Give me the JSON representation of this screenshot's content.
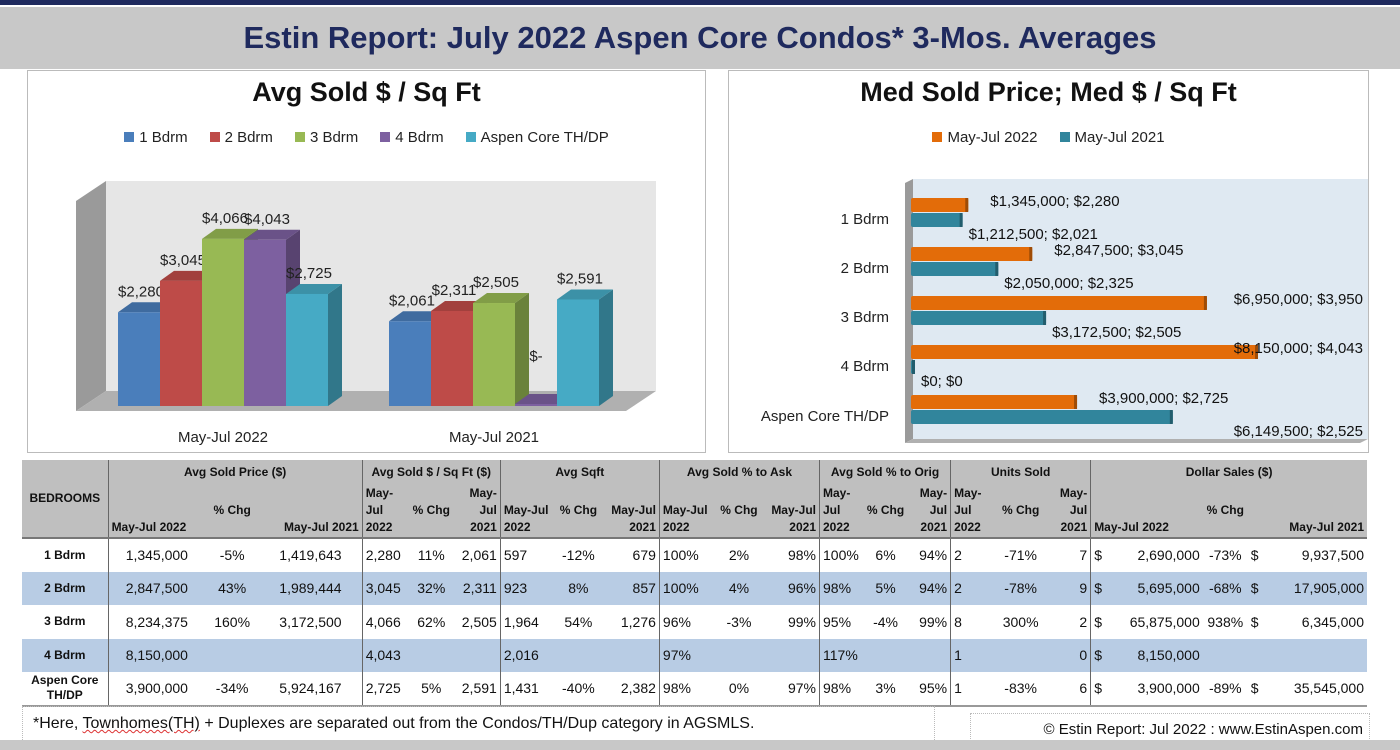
{
  "title": "Estin Report:  July 2022 Aspen Core Condos* 3-Mos. Averages",
  "colors": {
    "title": "#1f2a5e",
    "series": [
      "#4a7ebb",
      "#be4b48",
      "#98b954",
      "#7d60a0",
      "#46aac5"
    ],
    "y2022": "#e36c09",
    "y2021": "#31859c",
    "row_alt": "#b8cce4",
    "header": "#bfbfbf"
  },
  "chart_data": [
    {
      "type": "bar",
      "style": "3d-clustered-column",
      "title": "Avg Sold $ / Sq Ft",
      "categories": [
        "May-Jul 2022",
        "May-Jul 2021"
      ],
      "legend": "top",
      "series": [
        {
          "name": "1 Bdrm",
          "values": [
            2280,
            2061
          ],
          "labels": [
            "$2,280",
            "$2,061"
          ]
        },
        {
          "name": "2 Bdrm",
          "values": [
            3045,
            2311
          ],
          "labels": [
            "$3,045",
            "$2,311"
          ]
        },
        {
          "name": "3 Bdrm",
          "values": [
            4066,
            2505
          ],
          "labels": [
            "$4,066",
            "$2,505"
          ]
        },
        {
          "name": "4 Bdrm",
          "values": [
            4043,
            0
          ],
          "labels": [
            "$4,043",
            "$-"
          ]
        },
        {
          "name": "Aspen Core TH/DP",
          "values": [
            2725,
            2591
          ],
          "labels": [
            "$2,725",
            "$2,591"
          ]
        }
      ],
      "ylim": [
        0,
        4500
      ],
      "grid": false
    },
    {
      "type": "bar",
      "orientation": "horizontal",
      "title": "Med Sold Price; Med $ / Sq Ft",
      "categories": [
        "1 Bdrm",
        "2 Bdrm",
        "3 Bdrm",
        "4 Bdrm",
        "Aspen Core TH/DP"
      ],
      "legend": "top",
      "series": [
        {
          "name": "May-Jul 2022",
          "values": [
            1345000,
            2847500,
            6950000,
            8150000,
            3900000
          ],
          "per_sqft": [
            2280,
            3045,
            3950,
            4043,
            2725
          ],
          "labels": [
            "$1,345,000; $2,280",
            "$2,847,500; $3,045",
            "$6,950,000; $3,950",
            "$8,150,000; $4,043",
            "$3,900,000; $2,725"
          ]
        },
        {
          "name": "May-Jul 2021",
          "values": [
            1212500,
            2050000,
            3172500,
            0,
            6149500
          ],
          "per_sqft": [
            2021,
            2325,
            2505,
            0,
            2525
          ],
          "labels": [
            "$1,212,500; $2,021",
            "$2,050,000; $2,325",
            "$3,172,500; $2,505",
            "$0; $0",
            "$6,149,500; $2,525"
          ]
        }
      ],
      "xlim": [
        0,
        8150000
      ],
      "grid": false
    }
  ],
  "table": {
    "bedrooms_header": "BEDROOMS",
    "groups": [
      "Avg Sold Price ($)",
      "Avg Sold $ / Sq Ft ($)",
      "Avg Sqft",
      "Avg Sold % to Ask",
      "Avg Sold % to Orig",
      "Units Sold",
      "Dollar Sales ($)"
    ],
    "subheaders": [
      [
        "May-Jul 2022",
        "% Chg",
        "May-Jul 2021"
      ],
      [
        "May-\nJul\n2022",
        "% Chg",
        "May-\nJul\n2021"
      ],
      [
        "May-Jul\n2022",
        "% Chg",
        "May-Jul\n2021"
      ],
      [
        "May-Jul\n2022",
        "% Chg",
        "May-Jul\n2021"
      ],
      [
        "May-\nJul\n2022",
        "% Chg",
        "May-\nJul\n2021"
      ],
      [
        "May-\nJul\n2022",
        "% Chg",
        "May-\nJul\n2021"
      ],
      [
        "May-Jul 2022",
        "% Chg",
        "May-Jul 2021"
      ]
    ],
    "rows": [
      {
        "bedroom": "1 Bdrm",
        "cells": [
          "1,345,000",
          "-5%",
          "1,419,643",
          "2,280",
          "11%",
          "2,061",
          "597",
          "-12%",
          "679",
          "100%",
          "2%",
          "98%",
          "100%",
          "6%",
          "94%",
          "2",
          "-71%",
          "7",
          "2,690,000",
          "-73%",
          "9,937,500"
        ]
      },
      {
        "bedroom": "2 Bdrm",
        "cells": [
          "2,847,500",
          "43%",
          "1,989,444",
          "3,045",
          "32%",
          "2,311",
          "923",
          "8%",
          "857",
          "100%",
          "4%",
          "96%",
          "98%",
          "5%",
          "94%",
          "2",
          "-78%",
          "9",
          "5,695,000",
          "-68%",
          "17,905,000"
        ]
      },
      {
        "bedroom": "3 Bdrm",
        "cells": [
          "8,234,375",
          "160%",
          "3,172,500",
          "4,066",
          "62%",
          "2,505",
          "1,964",
          "54%",
          "1,276",
          "96%",
          "-3%",
          "99%",
          "95%",
          "-4%",
          "99%",
          "8",
          "300%",
          "2",
          "65,875,000",
          "938%",
          "6,345,000"
        ]
      },
      {
        "bedroom": "4 Bdrm",
        "cells": [
          "8,150,000",
          "",
          "",
          "4,043",
          "",
          "",
          "2,016",
          "",
          "",
          "97%",
          "",
          "",
          "117%",
          "",
          "",
          "1",
          "",
          "0",
          "8,150,000",
          "",
          ""
        ]
      },
      {
        "bedroom": "Aspen Core\nTH/DP",
        "cells": [
          "3,900,000",
          "-34%",
          "5,924,167",
          "2,725",
          "5%",
          "2,591",
          "1,431",
          "-40%",
          "2,382",
          "98%",
          "0%",
          "97%",
          "98%",
          "3%",
          "95%",
          "1",
          "-83%",
          "6",
          "3,900,000",
          "-89%",
          "35,545,000"
        ]
      }
    ],
    "currency_symbol": "$"
  },
  "footnote": {
    "prefix": "*Here, ",
    "underlined": "Townhomes(TH)",
    "rest": " + Duplexes are separated out from the Condos/TH/Dup category in AGSMLS."
  },
  "copyright": "© Estin Report: Jul 2022 : www.EstinAspen.com"
}
